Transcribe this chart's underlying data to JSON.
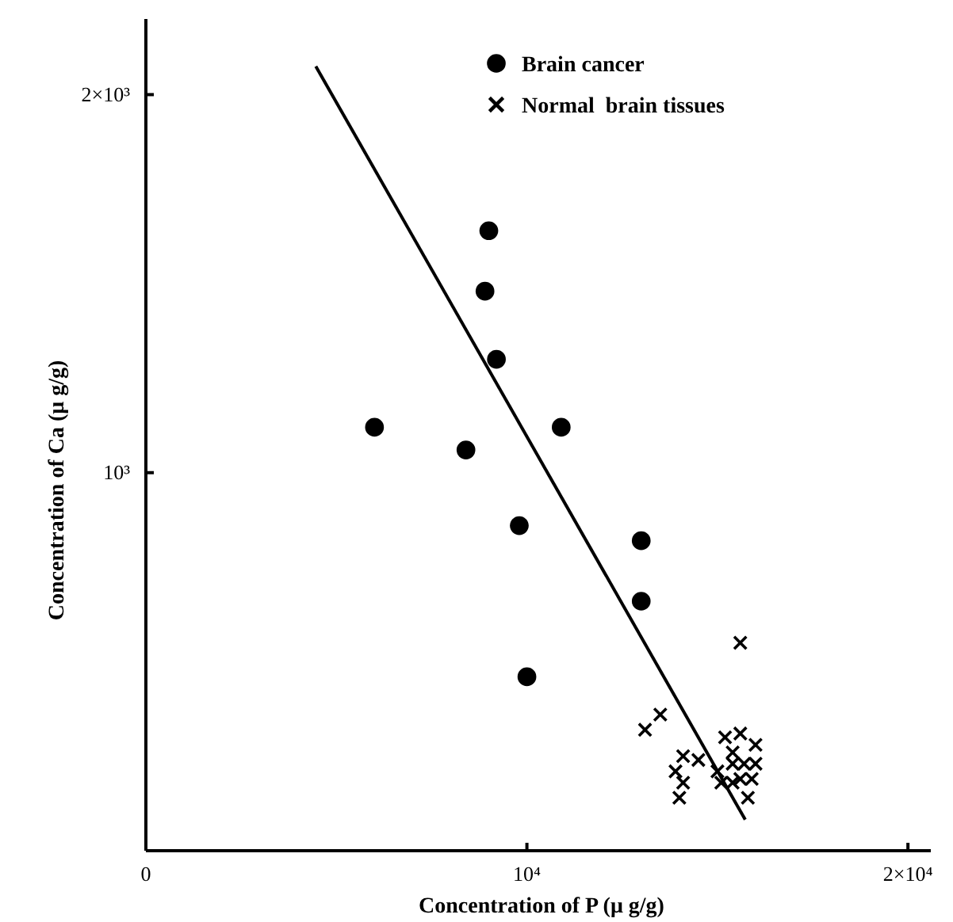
{
  "chart_data": {
    "type": "scatter",
    "xlabel": "Concentration of P (μ g/g)",
    "ylabel": "Concentration of Ca (μ g/g)",
    "xlim": [
      0,
      20600
    ],
    "ylim": [
      0,
      2200
    ],
    "xticks": [
      0,
      {
        "value": 10000,
        "label": "10⁴"
      },
      {
        "value": 20000,
        "label": "2×10⁴"
      }
    ],
    "yticks": [
      {
        "value": 1000,
        "label": "10³"
      },
      {
        "value": 2000,
        "label": "2×10³"
      }
    ],
    "legend": "top right",
    "grid": false,
    "series": [
      {
        "name": "Brain cancer",
        "color": "#000000",
        "marker": "circle",
        "x": [
          9000,
          8900,
          9200,
          6000,
          10900,
          8400,
          9800,
          13000,
          13000,
          10000
        ],
        "values": [
          1640,
          1480,
          1300,
          1120,
          1120,
          1060,
          860,
          820,
          660,
          460
        ]
      },
      {
        "name": "Normal  brain tissues",
        "color": "#000000",
        "marker": "cross",
        "x": [
          15600,
          13100,
          13500,
          15200,
          15600,
          16000,
          15400,
          14100,
          14500,
          13900,
          14100,
          14000,
          15000,
          15400,
          15700,
          16000,
          15100,
          15400,
          15600,
          15900,
          15800
        ],
        "values": [
          550,
          320,
          360,
          300,
          310,
          280,
          260,
          250,
          240,
          210,
          180,
          140,
          210,
          230,
          230,
          230,
          180,
          180,
          190,
          190,
          140
        ]
      },
      {
        "type": "line",
        "color": "#000000",
        "marker": "none",
        "line_style": "solid",
        "x": [
          4460,
          15730
        ],
        "values": [
          2075,
          82
        ]
      }
    ]
  }
}
